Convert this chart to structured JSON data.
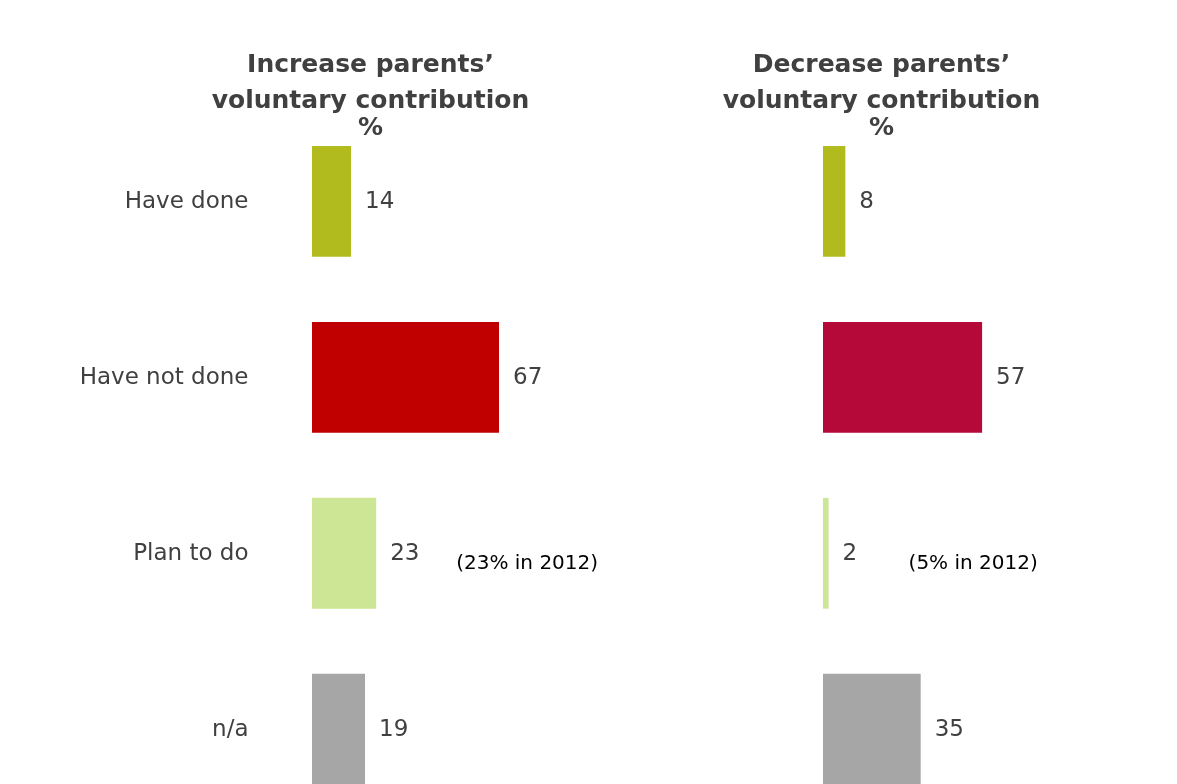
{
  "chart_data": [
    {
      "type": "bar",
      "orientation": "horizontal",
      "title": "Increase parents’\nvoluntary contribution",
      "subtitle": "%",
      "categories": [
        "Have done",
        "Have not done",
        "Plan to do",
        "n/a"
      ],
      "values": [
        14,
        67,
        23,
        19
      ],
      "colors": [
        "#b1bb1e",
        "#c00000",
        "#cde695",
        "#a6a6a6"
      ],
      "data_labels": true,
      "tick_labels": "y",
      "annotations": [
        "(23% in 2012)"
      ]
    },
    {
      "type": "bar",
      "orientation": "horizontal",
      "title": "Decrease parents’\nvoluntary contribution",
      "subtitle": "%",
      "categories": [
        null,
        null,
        null,
        null
      ],
      "values": [
        8,
        57,
        2,
        35
      ],
      "colors": [
        "#b1bb1e",
        "#b5093a",
        "#cde695",
        "#a6a6a6"
      ],
      "data_labels": true,
      "tick_labels": false,
      "annotations": [
        "(5% in 2012)"
      ]
    }
  ]
}
